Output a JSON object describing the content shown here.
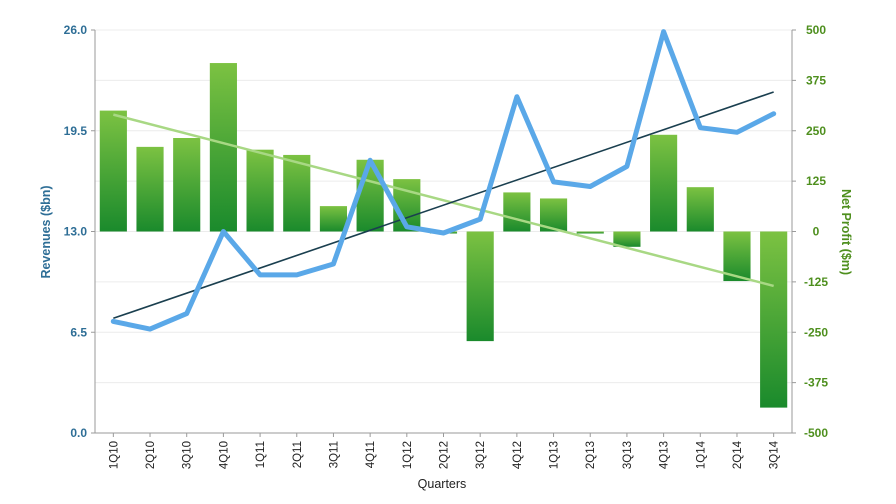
{
  "chart_data": {
    "type": "bar",
    "categories": [
      "1Q10",
      "2Q10",
      "3Q10",
      "4Q10",
      "1Q11",
      "2Q11",
      "3Q11",
      "4Q11",
      "1Q12",
      "2Q12",
      "3Q12",
      "4Q12",
      "1Q13",
      "2Q13",
      "3Q13",
      "4Q13",
      "1Q14",
      "2Q14",
      "3Q14"
    ],
    "xlabel": "Quarters",
    "ylabel_left": "Revenues ($bn)",
    "ylabel_right": "Net Profit ($m)",
    "ylim_left": [
      0,
      26
    ],
    "ylim_right": [
      -500,
      500
    ],
    "yticks_left": [
      "0.0",
      "6.5",
      "13.0",
      "19.5",
      "26.0"
    ],
    "yticks_right": [
      "-500",
      "-375",
      "-250",
      "-125",
      "0",
      "125",
      "250",
      "375",
      "500"
    ],
    "grid": "horizontal",
    "legend": "none",
    "series": [
      {
        "type": "bar",
        "axis": "right",
        "values": [
          300,
          210,
          232,
          418,
          203,
          190,
          63,
          178,
          130,
          -5,
          -272,
          97,
          82,
          -5,
          -38,
          240,
          110,
          -123,
          -437
        ]
      },
      {
        "type": "line",
        "axis": "left",
        "values": [
          7.2,
          6.7,
          7.7,
          13.0,
          10.2,
          10.2,
          10.9,
          17.6,
          13.3,
          12.9,
          13.8,
          21.7,
          16.2,
          15.9,
          17.2,
          25.9,
          19.7,
          19.4,
          20.6
        ]
      }
    ],
    "trendlines": [
      {
        "series": "revenue",
        "axis": "left",
        "start": 7.4,
        "end": 22.0
      },
      {
        "series": "net profit",
        "axis": "right",
        "start": 290,
        "end": -135
      }
    ],
    "colors": {
      "bar_top": "#7cc242",
      "bar_bottom": "#1a8a2c",
      "line": "#5aa8e8",
      "revenue_trend": "#1a3f4f",
      "profit_trend": "#a8d884",
      "left_axis_text": "#2e6e96",
      "right_axis_text": "#4e8f1e",
      "grid": "#ececec"
    }
  }
}
